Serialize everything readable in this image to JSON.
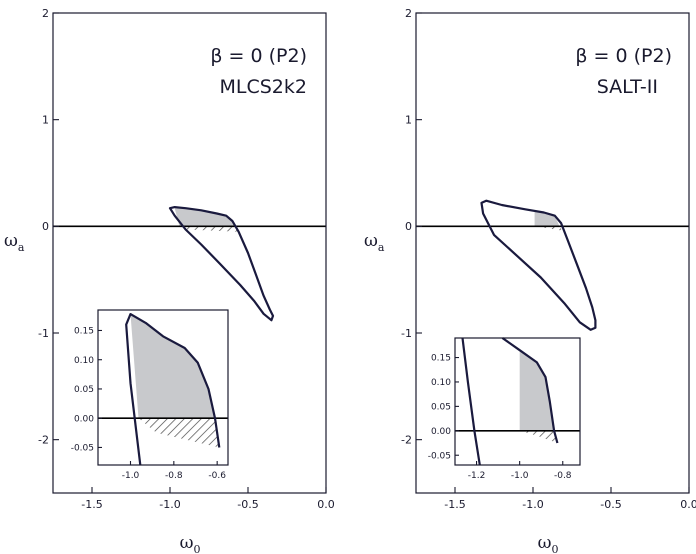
{
  "chart_data": [
    {
      "type": "line",
      "title": "",
      "annotations": [
        "β = 0 (P2)",
        "MLCS2k2"
      ],
      "xlabel": "ω0",
      "ylabel": "ωa",
      "xlim": [
        -1.75,
        0.0
      ],
      "ylim": [
        -2.5,
        2.0
      ],
      "xticks": [
        -1.5,
        -1.0,
        -0.5,
        0.0
      ],
      "xtick_labels": [
        "-1.5",
        "-1.0",
        "-0.5",
        "0.0"
      ],
      "yticks": [
        -2,
        -1,
        0,
        1,
        2
      ],
      "ytick_labels": [
        "-2",
        "-1",
        "0",
        "1",
        "2"
      ],
      "reference_line": {
        "y": 0
      },
      "contour": {
        "w0": [
          -1.0,
          -0.97,
          -0.9,
          -0.8,
          -0.7,
          -0.64,
          -0.6,
          -0.56,
          -0.5,
          -0.45,
          -0.4,
          -0.36,
          -0.34,
          -0.35,
          -0.4,
          -0.46,
          -0.55,
          -0.68,
          -0.8,
          -0.9,
          -0.97,
          -1.0
        ],
        "wa": [
          0.17,
          0.18,
          0.17,
          0.15,
          0.12,
          0.1,
          0.05,
          -0.05,
          -0.25,
          -0.45,
          -0.65,
          -0.78,
          -0.84,
          -0.88,
          -0.82,
          -0.7,
          -0.55,
          -0.35,
          -0.17,
          -0.03,
          0.1,
          0.17
        ]
      },
      "shaded_region": {
        "w0": [
          -0.97,
          -0.9,
          -0.8,
          -0.7,
          -0.64,
          -0.6,
          -0.58,
          -0.94
        ],
        "wa": [
          0.17,
          0.17,
          0.15,
          0.12,
          0.1,
          0.05,
          0.0,
          0.0
        ]
      },
      "hatched_region": {
        "w0": [
          -0.94,
          -0.58,
          -0.56,
          -0.89
        ],
        "wa": [
          0.0,
          0.0,
          -0.05,
          -0.03
        ]
      },
      "inset": {
        "xlim": [
          -1.15,
          -0.55
        ],
        "ylim": [
          -0.08,
          0.185
        ],
        "xticks": [
          -1.0,
          -0.8,
          -0.6
        ],
        "xtick_labels": [
          "-1.0",
          "-0.8",
          "-0.6"
        ],
        "yticks": [
          -0.05,
          0.0,
          0.05,
          0.1,
          0.15
        ],
        "ytick_labels": [
          "-0.05",
          "0.00",
          "0.05",
          "0.10",
          "0.15"
        ],
        "contour": {
          "w0": [
            -0.955,
            -1.0,
            -1.02,
            -1.0,
            -0.93,
            -0.85,
            -0.75,
            -0.69,
            -0.64,
            -0.61,
            -0.59
          ],
          "wa": [
            -0.08,
            0.06,
            0.16,
            0.178,
            0.163,
            0.14,
            0.12,
            0.095,
            0.05,
            0.0,
            -0.05
          ]
        },
        "shaded_region": {
          "w0": [
            -1.0,
            -0.93,
            -0.85,
            -0.75,
            -0.69,
            -0.64,
            -0.61,
            -0.963
          ],
          "wa": [
            0.178,
            0.163,
            0.14,
            0.12,
            0.095,
            0.05,
            0.0,
            0.0
          ]
        },
        "hatched_region": {
          "w0": [
            -0.963,
            -0.61,
            -0.59,
            -0.88
          ],
          "wa": [
            0.0,
            0.0,
            -0.05,
            -0.025
          ]
        }
      }
    },
    {
      "type": "line",
      "title": "",
      "annotations": [
        "β = 0 (P2)",
        "SALT-II"
      ],
      "xlabel": "ω0",
      "ylabel": "ωa",
      "xlim": [
        -1.75,
        0.0
      ],
      "ylim": [
        -2.5,
        2.0
      ],
      "xticks": [
        -1.5,
        -1.0,
        -0.5,
        0.0
      ],
      "xtick_labels": [
        "-1.5",
        "-1.0",
        "-0.5",
        "0.0"
      ],
      "yticks": [
        -2,
        -1,
        0,
        1,
        2
      ],
      "ytick_labels": [
        "-2",
        "-1",
        "0",
        "1",
        "2"
      ],
      "reference_line": {
        "y": 0
      },
      "contour": {
        "w0": [
          -1.33,
          -1.3,
          -1.2,
          -1.05,
          -0.93,
          -0.86,
          -0.82,
          -0.78,
          -0.72,
          -0.66,
          -0.62,
          -0.6,
          -0.6,
          -0.63,
          -0.7,
          -0.8,
          -0.95,
          -1.1,
          -1.25,
          -1.32,
          -1.33
        ],
        "wa": [
          0.22,
          0.24,
          0.2,
          0.16,
          0.13,
          0.1,
          0.03,
          -0.12,
          -0.35,
          -0.58,
          -0.76,
          -0.88,
          -0.95,
          -0.97,
          -0.9,
          -0.72,
          -0.48,
          -0.28,
          -0.08,
          0.12,
          0.22
        ]
      },
      "shaded_region": {
        "w0": [
          -0.99,
          -0.93,
          -0.86,
          -0.83,
          -0.99
        ],
        "wa": [
          0.15,
          0.13,
          0.1,
          0.0,
          0.0
        ]
      },
      "hatched_region": {
        "w0": [
          -0.99,
          -0.83,
          -0.81,
          -0.9
        ],
        "wa": [
          0.0,
          0.0,
          -0.04,
          -0.02
        ]
      },
      "inset": {
        "xlim": [
          -1.3,
          -0.72
        ],
        "ylim": [
          -0.07,
          0.19
        ],
        "xticks": [
          -1.2,
          -1.0,
          -0.8
        ],
        "xtick_labels": [
          "-1.2",
          "-1.0",
          "-0.8"
        ],
        "yticks": [
          -0.05,
          0.0,
          0.05,
          0.1,
          0.15
        ],
        "ytick_labels": [
          "-0.05",
          "0.00",
          "0.05",
          "0.10",
          "0.15"
        ],
        "contour_left": {
          "w0": [
            -1.265,
            -1.24,
            -1.21,
            -1.185
          ],
          "wa": [
            0.19,
            0.1,
            0.0,
            -0.07
          ]
        },
        "contour_right": {
          "w0": [
            -1.08,
            -1.0,
            -0.92,
            -0.88,
            -0.86,
            -0.84,
            -0.825
          ],
          "wa": [
            0.19,
            0.165,
            0.14,
            0.11,
            0.06,
            0.0,
            -0.025
          ]
        },
        "shaded_region": {
          "w0": [
            -1.0,
            -0.92,
            -0.88,
            -0.86,
            -0.84,
            -1.0
          ],
          "wa": [
            0.165,
            0.14,
            0.11,
            0.06,
            0.0,
            0.0
          ]
        },
        "hatched_region": {
          "w0": [
            -1.0,
            -0.84,
            -0.825,
            -0.92
          ],
          "wa": [
            0.0,
            0.0,
            -0.025,
            -0.01
          ]
        }
      }
    }
  ]
}
